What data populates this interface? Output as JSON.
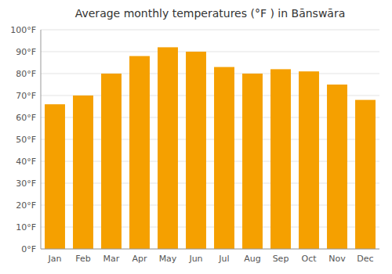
{
  "chart_data": {
    "type": "bar",
    "title": "Average monthly temperatures (°F ) in Bānswāra",
    "categories": [
      "Jan",
      "Feb",
      "Mar",
      "Apr",
      "May",
      "Jun",
      "Jul",
      "Aug",
      "Sep",
      "Oct",
      "Nov",
      "Dec"
    ],
    "values": [
      66,
      70,
      80,
      88,
      92,
      90,
      83,
      80,
      82,
      81,
      75,
      68
    ],
    "color": "#F5A000",
    "ylim": [
      0,
      100
    ],
    "yticks": [
      {
        "value": 0,
        "label": "0°F"
      },
      {
        "value": 10,
        "label": "10°F"
      },
      {
        "value": 20,
        "label": "20°F"
      },
      {
        "value": 30,
        "label": "30°F"
      },
      {
        "value": 40,
        "label": "40°F"
      },
      {
        "value": 50,
        "label": "50°F"
      },
      {
        "value": 60,
        "label": "60°F"
      },
      {
        "value": 70,
        "label": "70°F"
      },
      {
        "value": 80,
        "label": "80°F"
      },
      {
        "value": 90,
        "label": "90°F"
      },
      {
        "value": 100,
        "label": "100°F"
      }
    ],
    "grid": true
  }
}
